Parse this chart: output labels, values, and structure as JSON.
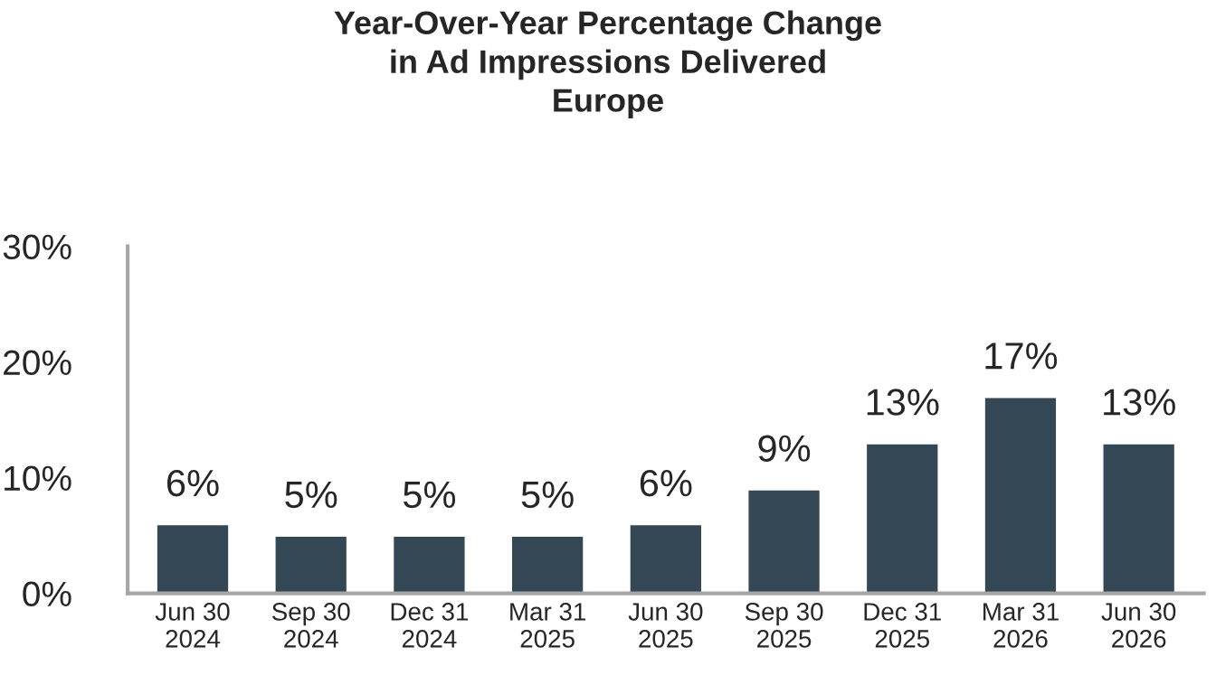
{
  "chart_data": {
    "type": "bar",
    "title": "Year-Over-Year Percentage Change\nin Ad Impressions Delivered\nEurope",
    "categories": [
      "Jun 30\n2024",
      "Sep 30\n2024",
      "Dec 31\n2024",
      "Mar 31\n2025",
      "Jun 30\n2025",
      "Sep 30\n2025",
      "Dec 31\n2025",
      "Mar 31\n2026",
      "Jun 30\n2026"
    ],
    "values": [
      6,
      5,
      5,
      5,
      6,
      9,
      13,
      17,
      13
    ],
    "value_labels": [
      "6%",
      "5%",
      "5%",
      "5%",
      "6%",
      "9%",
      "13%",
      "17%",
      "13%"
    ],
    "color": "#334854",
    "ylim": [
      0,
      30
    ],
    "yticks": [
      {
        "value": 0,
        "label": "0%"
      },
      {
        "value": 10,
        "label": "10%"
      },
      {
        "value": 20,
        "label": "20%"
      },
      {
        "value": 30,
        "label": "30%"
      }
    ],
    "grid": false,
    "legend": false
  }
}
